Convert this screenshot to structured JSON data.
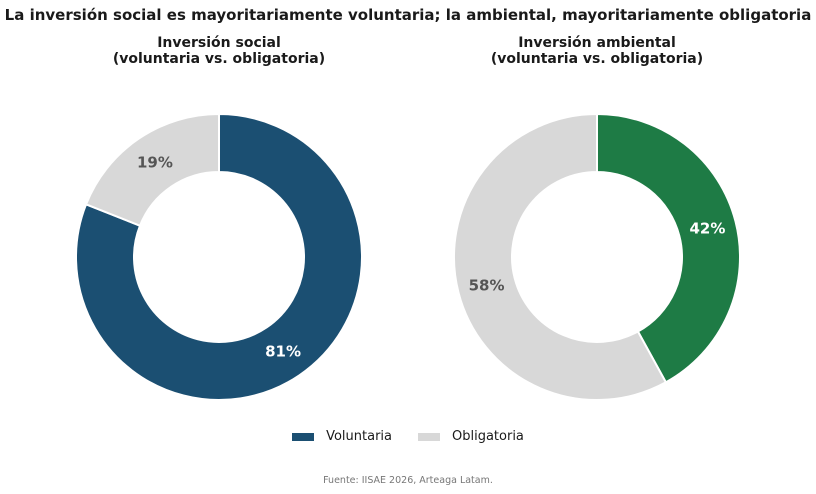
{
  "title": "La inversión social es mayoritariamente voluntaria; la ambiental, mayoritariamente obligatoria",
  "source": "Fuente: IISAE 2026, Arteaga Latam.",
  "legend": {
    "voluntaria": "Voluntaria",
    "obligatoria": "Obligatoria"
  },
  "colors": {
    "social_voluntaria": "#1b4f72",
    "ambiental_voluntaria": "#1e7b45",
    "obligatoria": "#d8d8d8",
    "label_dark": "#555555",
    "label_light": "#ffffff"
  },
  "chart_data": [
    {
      "type": "pie",
      "subtitle_line1": "Inversión social",
      "subtitle_line2": "(voluntaria vs. obligatoria)",
      "slices": [
        {
          "label": "Voluntaria",
          "value": 81,
          "text": "81%"
        },
        {
          "label": "Obligatoria",
          "value": 19,
          "text": "19%"
        }
      ]
    },
    {
      "type": "pie",
      "subtitle_line1": "Inversión ambiental",
      "subtitle_line2": "(voluntaria vs. obligatoria)",
      "slices": [
        {
          "label": "Voluntaria",
          "value": 42,
          "text": "42%"
        },
        {
          "label": "Obligatoria",
          "value": 58,
          "text": "58%"
        }
      ]
    }
  ]
}
